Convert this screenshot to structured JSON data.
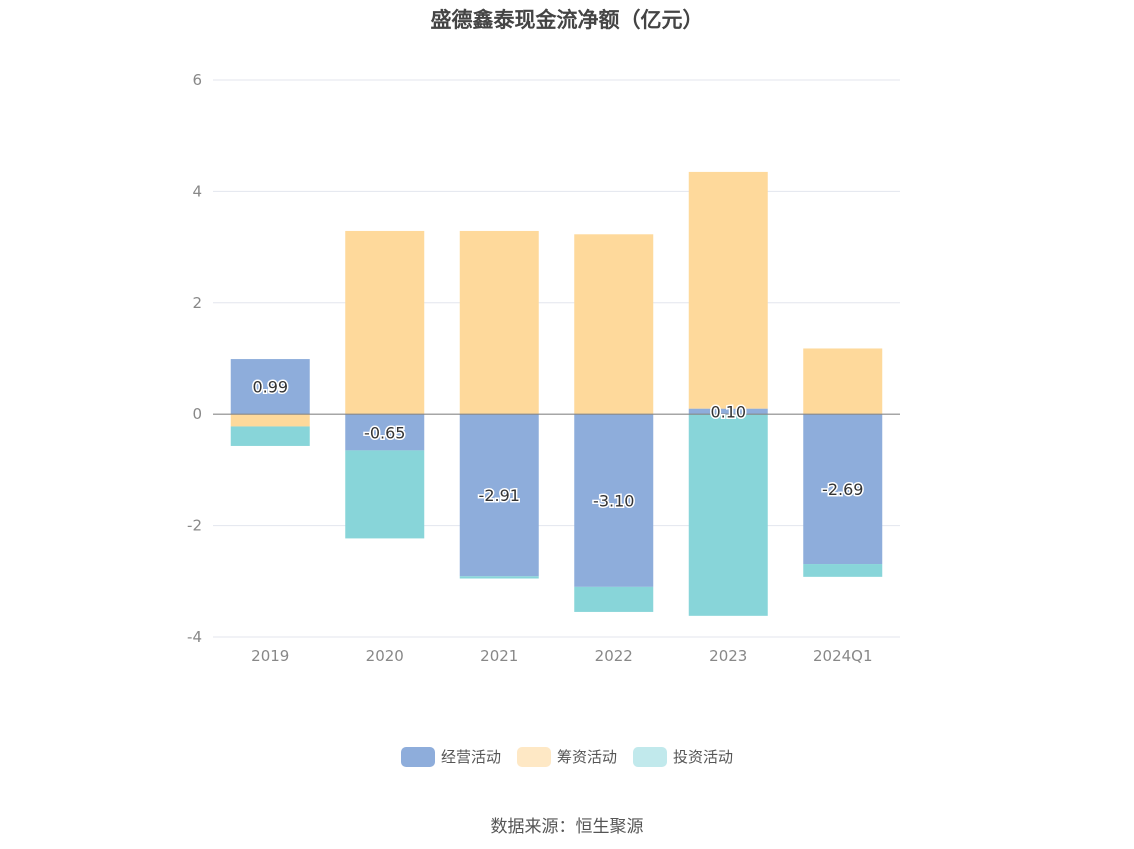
{
  "chart_data": {
    "type": "bar",
    "stacked": true,
    "title": "盛德鑫泰现金流净额（亿元）",
    "categories": [
      "2019",
      "2020",
      "2021",
      "2022",
      "2023",
      "2024Q1"
    ],
    "series": [
      {
        "name": "经营活动",
        "color": "#8eaddb",
        "values": [
          0.99,
          -0.65,
          -2.91,
          -3.1,
          0.1,
          -2.69
        ]
      },
      {
        "name": "筹资活动",
        "color": "#fed99b",
        "values": [
          -0.22,
          3.29,
          3.29,
          3.23,
          4.25,
          1.18
        ]
      },
      {
        "name": "投资活动",
        "color": "#88d5d9",
        "values": [
          -0.35,
          -1.58,
          -0.04,
          -0.45,
          -3.62,
          -0.23
        ]
      }
    ],
    "data_labels": [
      "0.99",
      "-0.65",
      "-2.91",
      "-3.10",
      "0.10",
      "-2.69"
    ],
    "y_ticks": [
      "6",
      "4",
      "2",
      "0",
      "-2",
      "-4"
    ],
    "ylim": [
      -4,
      6
    ],
    "grid": true,
    "legend_position": "bottom",
    "legend_colors": [
      "#8eaddb",
      "#fee8c5",
      "#c1e9ec"
    ]
  },
  "source": "数据来源：恒生聚源"
}
